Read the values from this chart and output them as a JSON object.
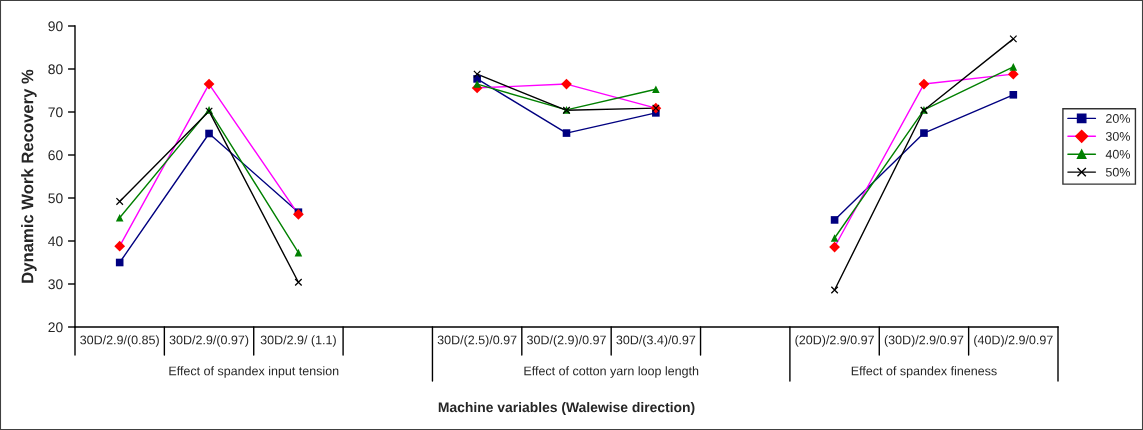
{
  "chart_data": {
    "type": "line",
    "xlabel": "Machine variables (Walewise direction)",
    "ylabel": "Dynamic Work Recovery %",
    "categories": [
      "30D/2.9/(0.85)",
      "30D/2.9/(0.97)",
      "30D/2.9/ (1.1)",
      null,
      "30D/(2.5)/0.97",
      "30D/(2.9)/0.97",
      "30D/(3.4)/0.97",
      null,
      "(20D)/2.9/0.97",
      "(30D)/2.9/0.97",
      "(40D)/2.9/0.97"
    ],
    "annotations": [
      "Effect of spandex input tension",
      "Effect of cotton yarn loop length",
      "Effect of spandex fineness"
    ],
    "series": [
      {
        "name": "20%",
        "color": "#000080",
        "marker": "square",
        "values": [
          35,
          65,
          46.7,
          null,
          77.7,
          65.1,
          69.8,
          null,
          44.9,
          65.1,
          74
        ]
      },
      {
        "name": "30%",
        "color": "#ff00ff",
        "colors": [
          "#ff0000",
          "#ff0000",
          "#ff0000",
          null,
          "#ff0000",
          "#ff0000",
          "#ff0000",
          null,
          "#ff0000",
          "#ff0000",
          "#ff0000"
        ],
        "marker": "diamond",
        "values": [
          38.8,
          76.5,
          46.2,
          null,
          75.6,
          76.5,
          70.9,
          null,
          38.6,
          76.5,
          78.8
        ]
      },
      {
        "name": "40%",
        "color": "#008000",
        "marker": "triangle",
        "values": [
          45.4,
          70.5,
          37.3,
          null,
          76.5,
          70.5,
          75.3,
          null,
          40.7,
          70.5,
          80.5
        ]
      },
      {
        "name": "50%",
        "color": "#000000",
        "marker": "cross",
        "values": [
          49.2,
          70.2,
          30.4,
          null,
          78.8,
          70.4,
          70.9,
          null,
          28.6,
          70.4,
          87
        ]
      }
    ],
    "ylim": [
      20,
      90
    ],
    "yticks": [
      20,
      30,
      40,
      50,
      60,
      70,
      80,
      90
    ],
    "grid": false,
    "legend": "right"
  }
}
